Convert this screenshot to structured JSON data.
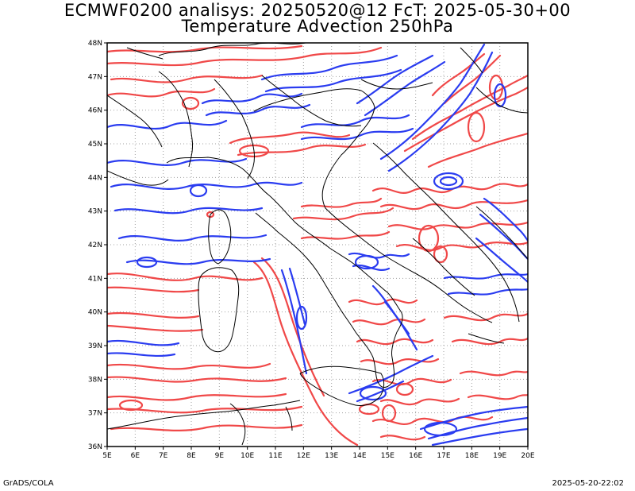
{
  "header": {
    "title_line1": "ECMWF0200 analisys: 20250520@12 FcT: 2025-05-30+00",
    "title_line2": "Temperature Advection 250hPa"
  },
  "footer": {
    "left": "GrADS/COLA",
    "right": "2025-05-20-22:02"
  },
  "map": {
    "lon_range": [
      5,
      20
    ],
    "lat_range": [
      36,
      48
    ],
    "x_tick_labels": [
      "5E",
      "6E",
      "7E",
      "8E",
      "9E",
      "10E",
      "11E",
      "12E",
      "13E",
      "14E",
      "15E",
      "16E",
      "17E",
      "18E",
      "19E",
      "20E"
    ],
    "y_tick_labels": [
      "36N",
      "37N",
      "38N",
      "39N",
      "40N",
      "41N",
      "42N",
      "43N",
      "44N",
      "45N",
      "46N",
      "47N",
      "48N"
    ],
    "grid": "dotted",
    "colors": {
      "positive_contour": "#f04848",
      "negative_contour": "#2a3cf0",
      "coastline": "#000000",
      "grid": "#a0a0a0"
    }
  }
}
